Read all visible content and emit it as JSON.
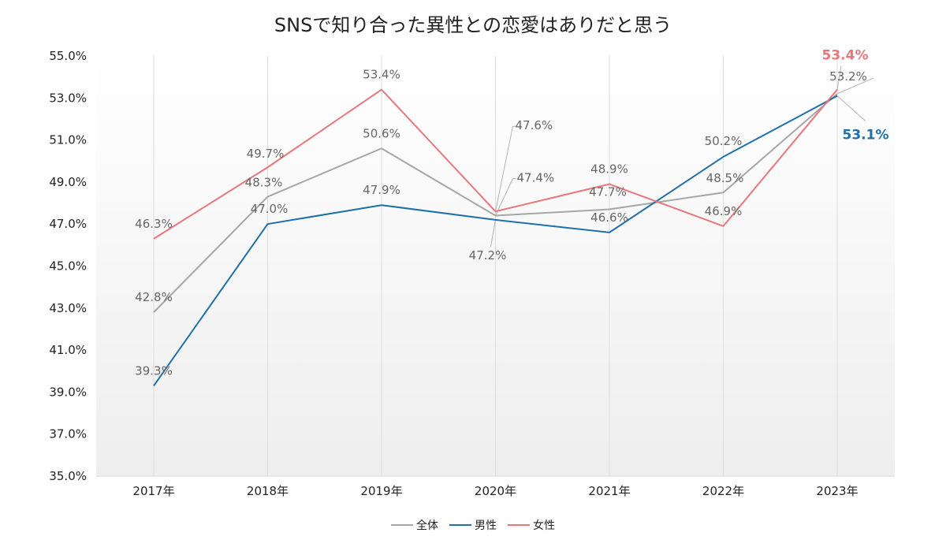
{
  "chart_data": {
    "type": "line",
    "title": "SNSで知り合った異性との恋愛はありだと思う",
    "categories": [
      "2017年",
      "2018年",
      "2019年",
      "2020年",
      "2021年",
      "2022年",
      "2023年"
    ],
    "yticks": [
      "35.0%",
      "37.0%",
      "39.0%",
      "41.0%",
      "43.0%",
      "45.0%",
      "47.0%",
      "49.0%",
      "51.0%",
      "53.0%",
      "55.0%"
    ],
    "ylim": [
      35.0,
      55.0
    ],
    "series": [
      {
        "name": "全体",
        "color": "#a6a6a6",
        "values": [
          42.8,
          48.3,
          50.6,
          47.4,
          47.7,
          48.5,
          53.2
        ],
        "labels": [
          "42.8%",
          "48.3%",
          "50.6%",
          "47.4%",
          "47.7%",
          "48.5%",
          "53.2%"
        ]
      },
      {
        "name": "男性",
        "color": "#1f6fa8",
        "values": [
          39.3,
          47.0,
          47.9,
          47.2,
          46.6,
          50.2,
          53.1
        ],
        "labels": [
          "39.3%",
          "47.0%",
          "47.9%",
          "47.2%",
          "46.6%",
          "50.2%",
          "53.1%"
        ]
      },
      {
        "name": "女性",
        "color": "#e8777d",
        "values": [
          46.3,
          49.7,
          53.4,
          47.6,
          48.9,
          46.9,
          53.4
        ],
        "labels": [
          "46.3%",
          "49.7%",
          "53.4%",
          "47.6%",
          "48.9%",
          "46.9%",
          "53.4%"
        ]
      }
    ],
    "legend_position": "bottom",
    "grid": "vertical"
  }
}
